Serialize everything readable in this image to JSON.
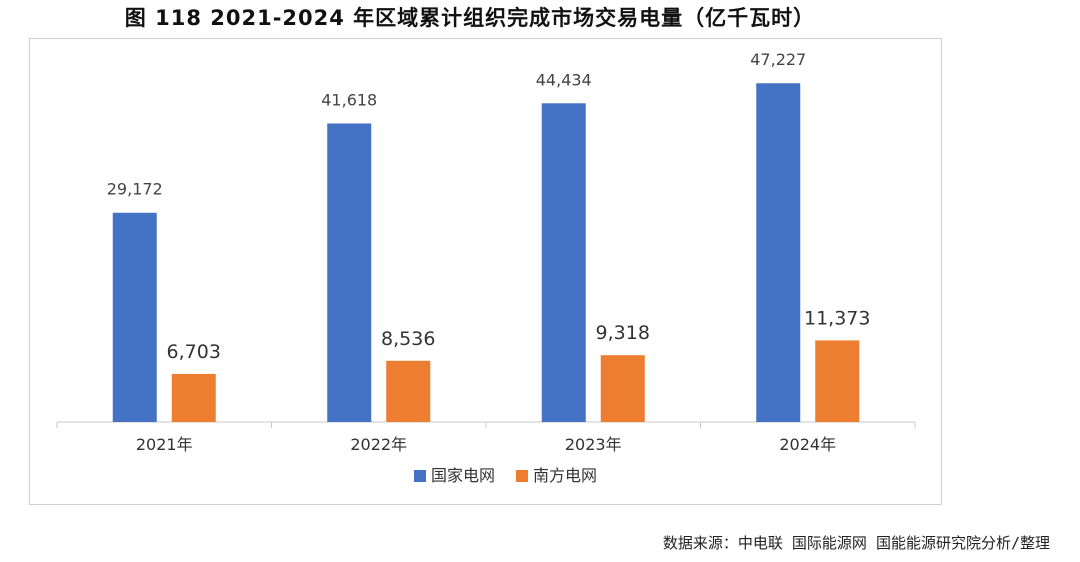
{
  "page": {
    "title": "图 118 2021-2024 年区域累计组织完成市场交易电量（亿千瓦时）",
    "source": "数据来源：中电联 国际能源网 国能能源研究院分析/整理"
  },
  "chart_data": {
    "type": "bar",
    "title": "图 118 2021-2024 年区域累计组织完成市场交易电量（亿千瓦时）",
    "categories": [
      "2021年",
      "2022年",
      "2023年",
      "2024年"
    ],
    "series": [
      {
        "name": "国家电网",
        "color": "#4472C4",
        "values": [
          29172,
          41618,
          44434,
          47227
        ],
        "labels": [
          "29,172",
          "41,618",
          "44,434",
          "47,227"
        ]
      },
      {
        "name": "南方电网",
        "color": "#ED7D31",
        "values": [
          6703,
          8536,
          9318,
          11373
        ],
        "labels": [
          "6,703",
          "8,536",
          "9,318",
          "11,373"
        ]
      }
    ],
    "ylim": [
      0,
      52000
    ],
    "grid": false,
    "legend": "bottom"
  }
}
